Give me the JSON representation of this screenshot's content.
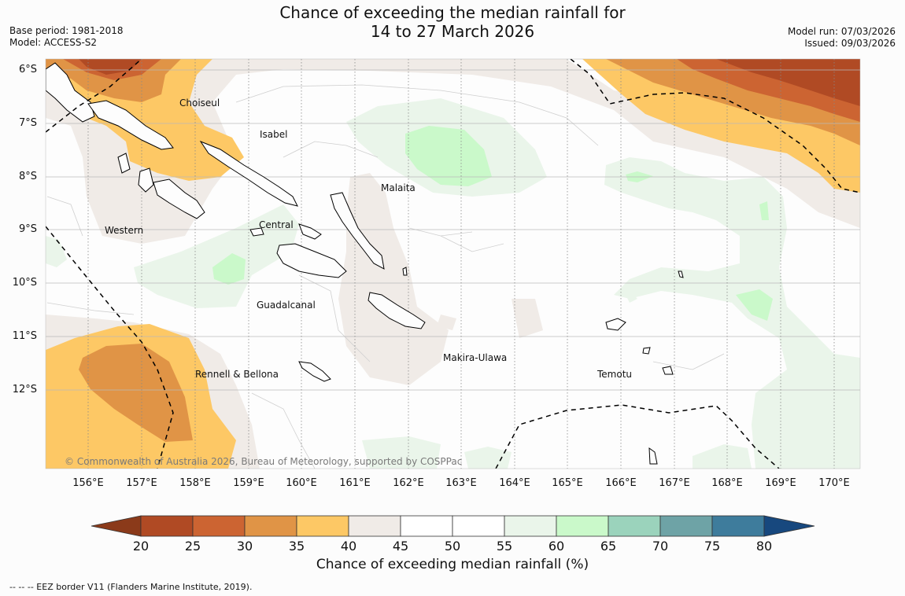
{
  "title": {
    "line1": "Chance of exceeding the median rainfall for",
    "line2": "14 to 27 March 2026"
  },
  "meta_left": {
    "base_period": "Base period: 1981-2018",
    "model": "Model: ACCESS-S2"
  },
  "meta_right": {
    "model_run": "Model run: 07/03/2026",
    "issued": "Issued: 09/03/2026"
  },
  "lat_labels": [
    "6°S",
    "7°S",
    "8°S",
    "9°S",
    "10°S",
    "11°S",
    "12°S"
  ],
  "lon_labels": [
    "156°E",
    "157°E",
    "158°E",
    "159°E",
    "160°E",
    "161°E",
    "162°E",
    "163°E",
    "164°E",
    "165°E",
    "166°E",
    "167°E",
    "168°E",
    "169°E",
    "170°E"
  ],
  "regions": {
    "choiseul": "Choiseul",
    "isabel": "Isabel",
    "malaita": "Malaita",
    "western": "Western",
    "central": "Central",
    "guadalcanal": "Guadalcanal",
    "makira": "Makira-Ulawa",
    "rennell": "Rennell & Bellona",
    "temotu": "Temotu"
  },
  "copyright": "© Commonwealth of Australia 2026, Bureau of Meteorology, supported by COSPPac",
  "colorbar": {
    "title": "Chance of exceeding median rainfall (%)",
    "ticks": [
      "20",
      "25",
      "30",
      "35",
      "40",
      "45",
      "50",
      "55",
      "60",
      "65",
      "70",
      "75",
      "80"
    ],
    "colors": [
      "#8b3a1a",
      "#b04a24",
      "#cc6432",
      "#e09446",
      "#fdc865",
      "#f0ebe7",
      "#ffffff",
      "#ffffff",
      "#eaf5ea",
      "#caf9ca",
      "#9bd3bc",
      "#6ea3a6",
      "#3e7c9c",
      "#17487e"
    ]
  },
  "footnote": "-- -- -- EEZ border V11 (Flanders Marine Institute, 2019)."
}
